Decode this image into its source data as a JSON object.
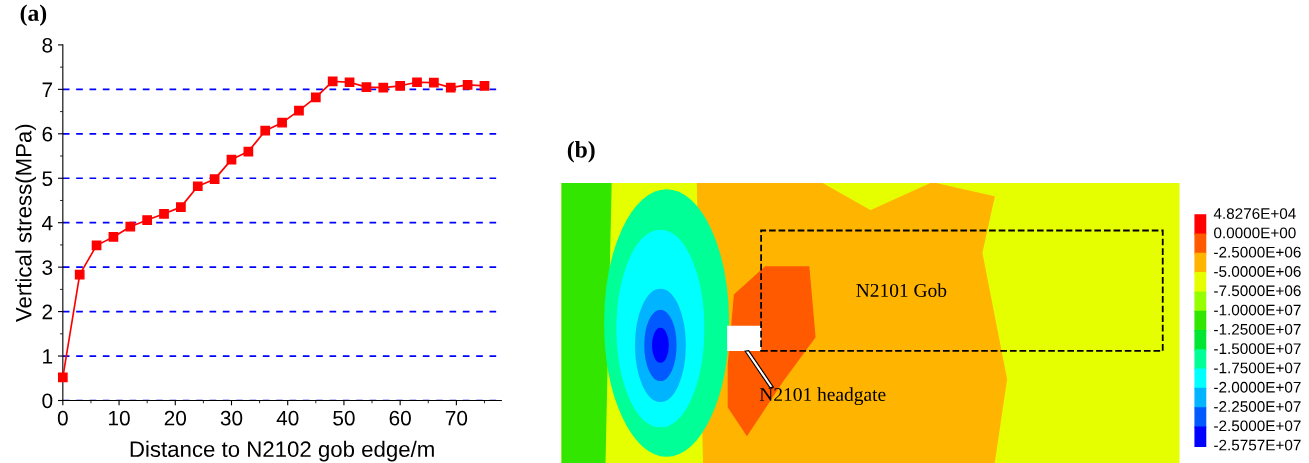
{
  "chart_data": [
    {
      "type": "line",
      "title": "(a)",
      "xlabel": "Distance to N2102 gob edge/m",
      "ylabel": "Vertical stress(MPa)",
      "x": [
        0,
        3,
        6,
        9,
        12,
        15,
        18,
        21,
        24,
        27,
        30,
        33,
        36,
        39,
        42,
        45,
        48,
        51,
        54,
        57,
        60,
        63,
        66,
        69,
        72,
        75
      ],
      "series": [
        {
          "color": "#ff0000",
          "values": [
            0.52,
            2.83,
            3.49,
            3.68,
            3.91,
            4.06,
            4.2,
            4.35,
            4.82,
            4.98,
            5.42,
            5.6,
            6.07,
            6.25,
            6.52,
            6.82,
            7.18,
            7.16,
            7.05,
            7.04,
            7.08,
            7.16,
            7.15,
            7.04,
            7.1,
            7.08
          ]
        }
      ],
      "xlim": [
        0,
        78
      ],
      "xticks": [
        0,
        10,
        20,
        30,
        40,
        50,
        60,
        70
      ],
      "ylim": [
        0,
        8
      ],
      "yticks": [
        0,
        1,
        2,
        3,
        4,
        5,
        6,
        7,
        8
      ],
      "grid": "y",
      "marker": "square",
      "line_style": "solid",
      "legend": false
    },
    {
      "type": "other",
      "title": "(b)",
      "categories": [
        "4.8276E+04",
        "0.0000E+00",
        "-2.5000E+06",
        "-5.0000E+06",
        "-7.5000E+06",
        "-1.0000E+07",
        "-1.2500E+07",
        "-1.5000E+07",
        "-1.7500E+07",
        "-2.0000E+07",
        "-2.2500E+07",
        "-2.5000E+07",
        "-2.5757E+07"
      ],
      "colors": [
        "#ff0000",
        "#ff5a00",
        "#ffb400",
        "#e6ff00",
        "#96ff00",
        "#32e600",
        "#00e632",
        "#00ff96",
        "#00ffff",
        "#00b4ff",
        "#005aff",
        "#0000ff"
      ],
      "annotations": [
        "N2101 Gob",
        "N2101 headgate"
      ]
    }
  ]
}
